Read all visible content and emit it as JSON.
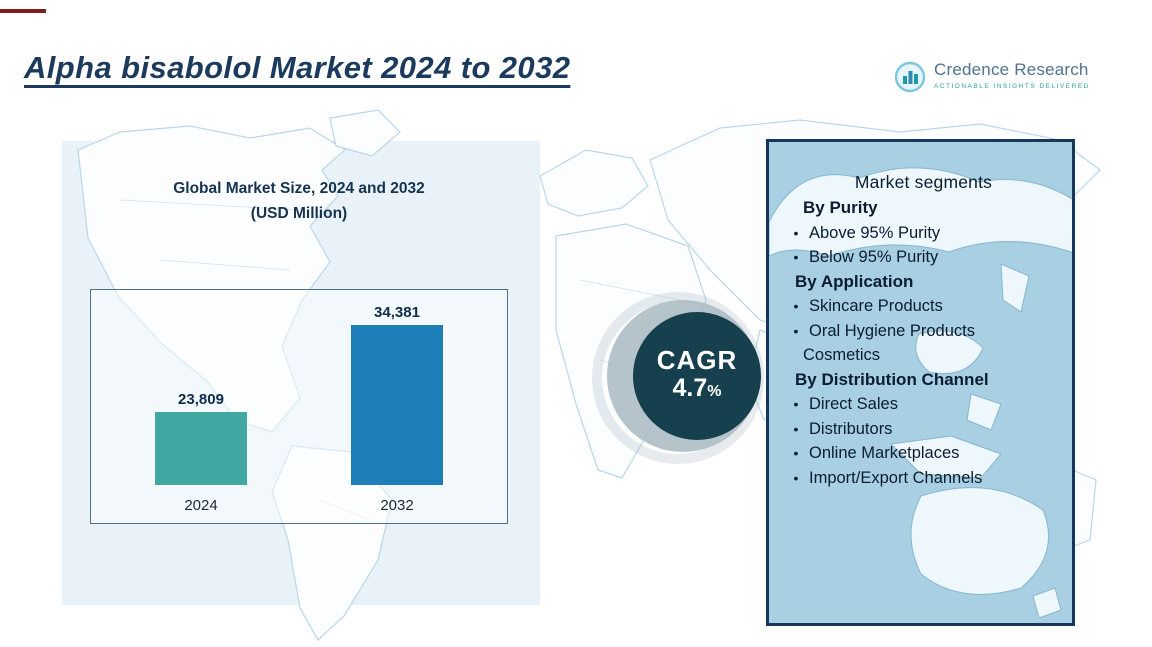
{
  "header": {
    "title": "Alpha bisabolol Market 2024 to 2032",
    "logo": {
      "brand": "Credence Research",
      "tagline": "Actionable Insights Delivered"
    }
  },
  "chart": {
    "title_line1": "Global Market Size, 2024 and 2032",
    "title_line2": "(USD Million)"
  },
  "chart_data": {
    "type": "bar",
    "title": "Global Market Size, 2024 and 2032 (USD Million)",
    "categories": [
      "2024",
      "2032"
    ],
    "values": [
      23809,
      34381
    ],
    "value_labels": [
      "23,809",
      "34,381"
    ],
    "bar_colors": [
      "#41a7a1",
      "#1e7fb8"
    ],
    "xlabel": "",
    "ylabel": "USD Million",
    "ylim": [
      15000,
      36500
    ],
    "grid": false,
    "legend": false
  },
  "cagr": {
    "label": "CAGR",
    "value": "4.7",
    "unit": "%"
  },
  "segments": {
    "title": "Market segments",
    "bullet_char": "•",
    "groups": [
      {
        "heading": "By Purity",
        "items": [
          {
            "label": "Above 95% Purity",
            "bullet": true
          },
          {
            "label": "Below 95% Purity",
            "bullet": true
          }
        ]
      },
      {
        "heading": "By Application",
        "items": [
          {
            "label": "Skincare Products",
            "bullet": true
          },
          {
            "label": "Oral Hygiene Products",
            "bullet": true
          },
          {
            "label": "Cosmetics",
            "bullet": false
          }
        ]
      },
      {
        "heading": "By Distribution Channel",
        "items": [
          {
            "label": "Direct Sales",
            "bullet": true
          },
          {
            "label": "Distributors",
            "bullet": true
          },
          {
            "label": "Online Marketplaces",
            "bullet": true
          },
          {
            "label": "Import/Export Channels",
            "bullet": true
          }
        ]
      }
    ]
  },
  "colors": {
    "title_text": "#1b3a5e",
    "bar_2024": "#41a7a1",
    "bar_2032": "#1e7fb8",
    "cagr_circle": "#16404d",
    "panel_bg": "#a9cfe2",
    "panel_border": "#16375b",
    "map_line": "#b9d7e9"
  }
}
